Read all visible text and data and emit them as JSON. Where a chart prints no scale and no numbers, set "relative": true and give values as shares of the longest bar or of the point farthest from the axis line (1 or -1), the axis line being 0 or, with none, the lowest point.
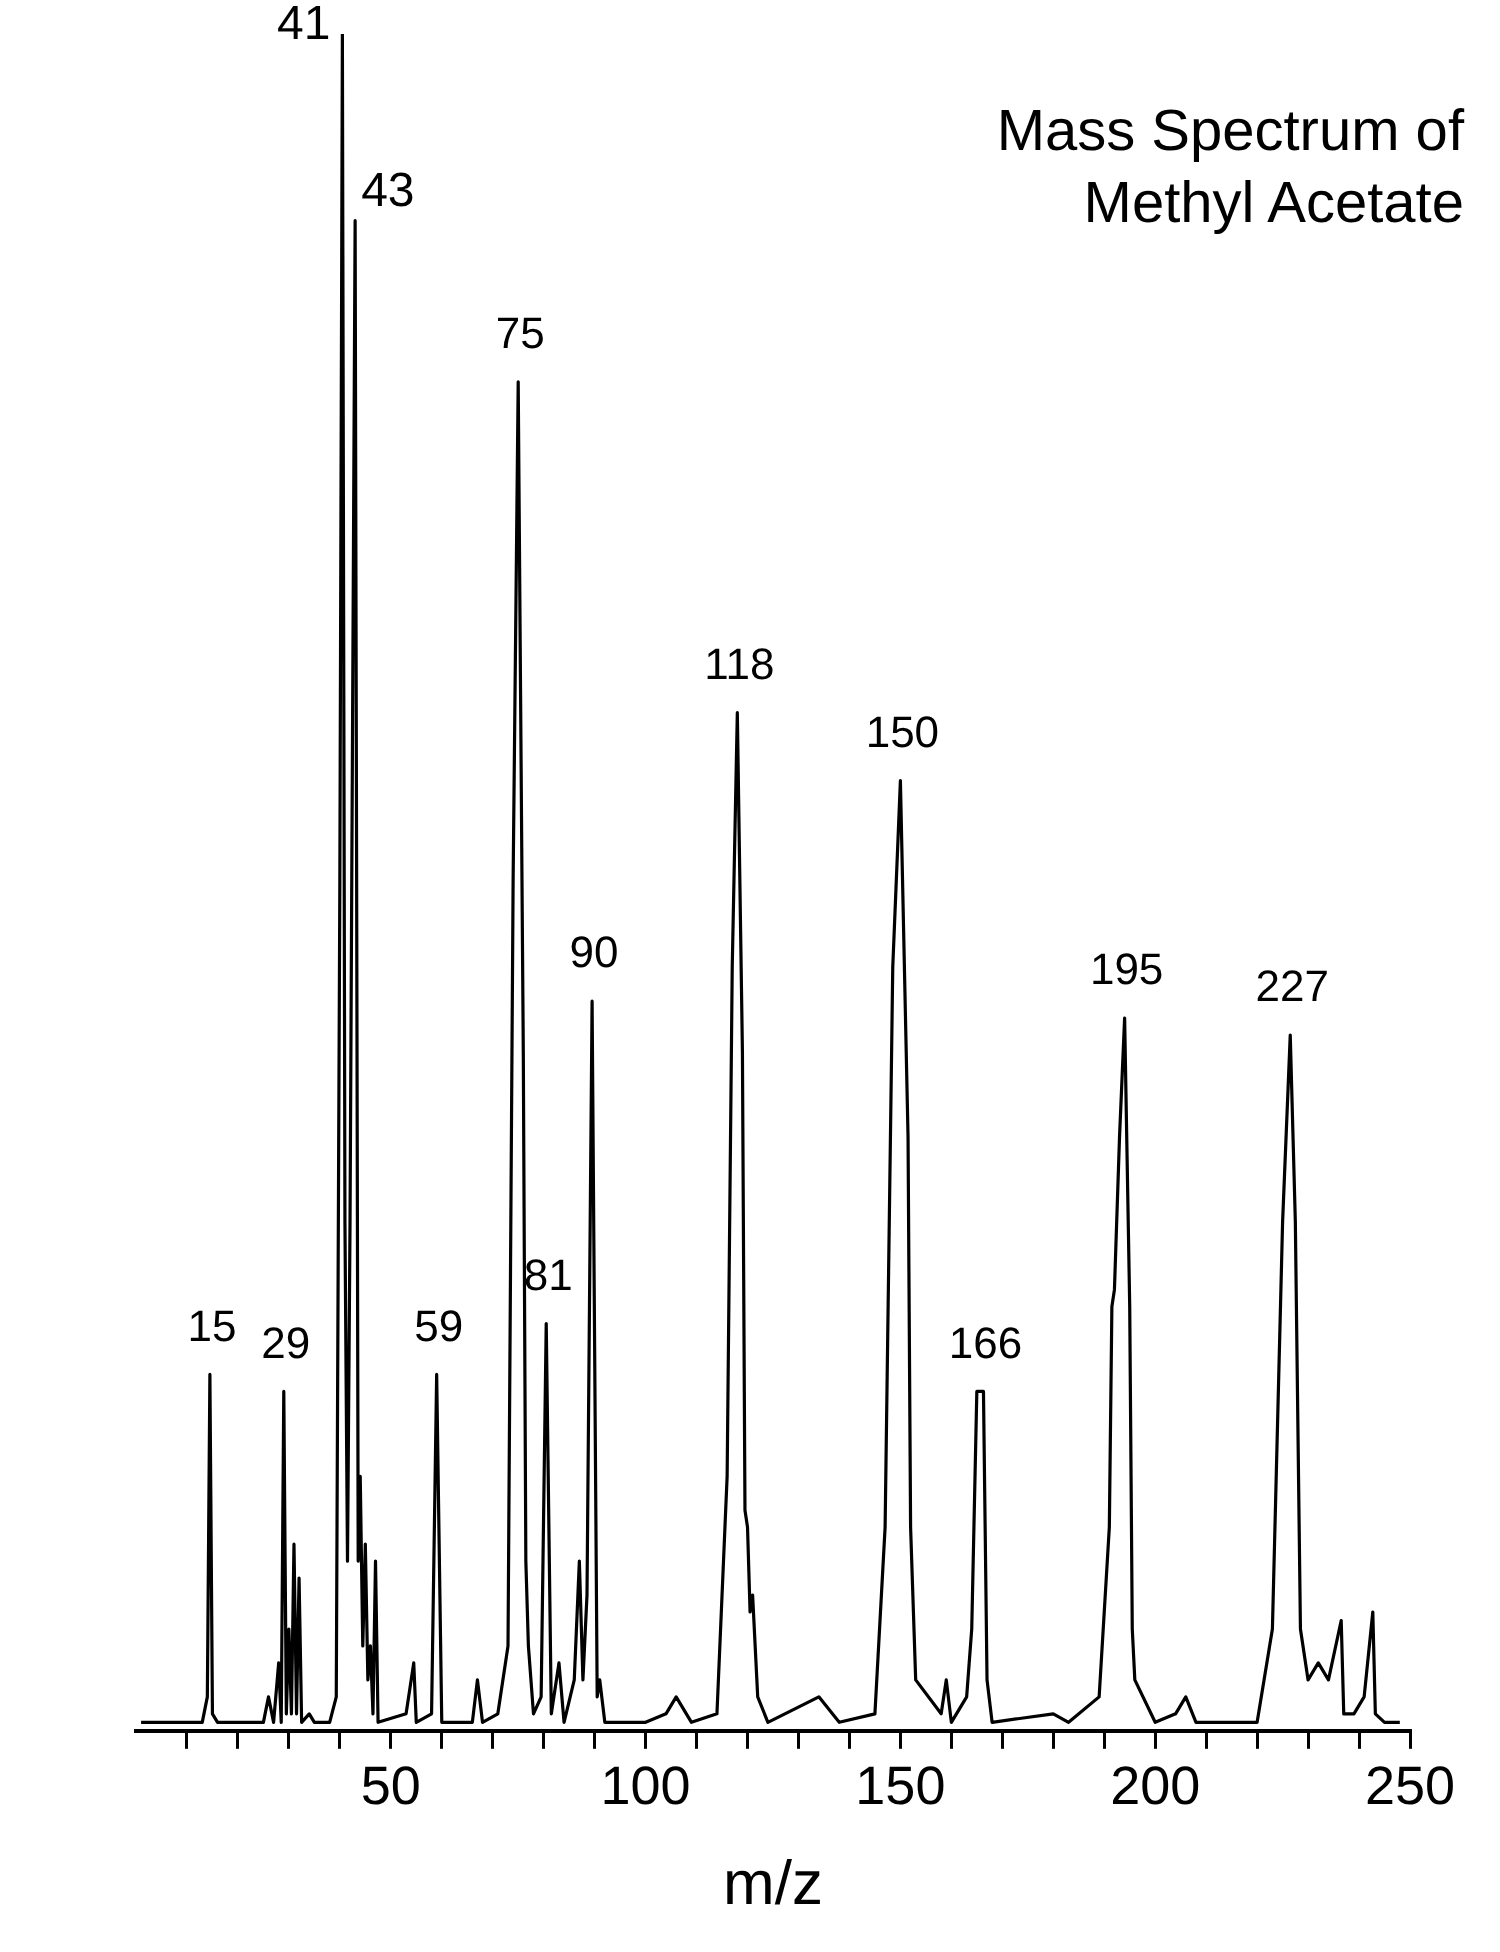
{
  "chart_data": {
    "type": "line",
    "title": "Mass Spectrum of Methyl Acetate",
    "xlabel": "m/z",
    "relative": true,
    "xlim": [
      0,
      250
    ],
    "xticks": [
      {
        "value": 10,
        "label": null
      },
      {
        "value": 20,
        "label": null
      },
      {
        "value": 30,
        "label": null
      },
      {
        "value": 40,
        "label": null
      },
      50,
      {
        "value": 60,
        "label": null
      },
      {
        "value": 70,
        "label": null
      },
      {
        "value": 80,
        "label": null
      },
      {
        "value": 90,
        "label": null
      },
      100,
      {
        "value": 110,
        "label": null
      },
      {
        "value": 120,
        "label": null
      },
      {
        "value": 130,
        "label": null
      },
      {
        "value": 140,
        "label": null
      },
      150,
      {
        "value": 160,
        "label": null
      },
      {
        "value": 170,
        "label": null
      },
      {
        "value": 180,
        "label": null
      },
      {
        "value": 190,
        "label": null
      },
      200,
      {
        "value": 210,
        "label": null
      },
      {
        "value": 220,
        "label": null
      },
      {
        "value": 230,
        "label": null
      },
      {
        "value": 240,
        "label": null
      },
      250
    ],
    "series": [
      {
        "color": "#000000",
        "x": [
          1,
          13,
          14,
          14.5,
          15,
          16,
          25,
          26,
          27,
          28,
          28.5,
          29,
          29.5,
          30,
          30.5,
          31,
          31.5,
          32,
          32.5,
          34,
          35,
          38,
          39.3,
          40,
          40.5,
          41,
          41.5,
          42,
          43,
          43.6,
          44,
          44.5,
          45,
          45.5,
          46,
          46.5,
          47,
          47.5,
          53,
          54.5,
          55,
          58,
          59,
          60,
          66,
          67,
          68,
          71,
          73,
          74,
          75,
          76,
          76.5,
          77,
          78,
          79.5,
          80.5,
          81.5,
          83,
          84,
          86,
          87,
          87.7,
          88.5,
          89.5,
          90.5,
          91,
          92,
          100,
          104,
          106,
          109,
          114,
          116,
          117,
          118,
          119,
          119.5,
          120,
          120.5,
          121,
          122,
          124,
          134,
          138,
          145,
          147,
          148.5,
          150,
          151.5,
          152,
          153,
          158,
          159,
          160,
          163,
          164,
          165,
          166.3,
          167,
          168,
          180,
          183,
          189,
          191,
          191.5,
          192,
          193,
          194,
          195,
          195.5,
          196,
          200,
          204,
          206,
          208,
          212,
          220,
          223,
          225,
          226.5,
          227.5,
          228.5,
          230,
          232,
          234,
          236.5,
          237,
          239,
          241,
          242.7,
          243.2,
          245,
          248
        ],
        "values": [
          0.005,
          0.005,
          0.02,
          0.21,
          0.01,
          0.005,
          0.005,
          0.02,
          0.005,
          0.04,
          0.005,
          0.2,
          0.01,
          0.06,
          0.01,
          0.11,
          0.01,
          0.09,
          0.005,
          0.01,
          0.005,
          0.005,
          0.02,
          0.5,
          1,
          0.3,
          0.1,
          0.3,
          0.89,
          0.1,
          0.15,
          0.05,
          0.11,
          0.03,
          0.05,
          0.01,
          0.1,
          0.005,
          0.01,
          0.04,
          0.005,
          0.01,
          0.21,
          0.005,
          0.005,
          0.03,
          0.005,
          0.01,
          0.05,
          0.5,
          0.795,
          0.4,
          0.1,
          0.05,
          0.01,
          0.02,
          0.24,
          0.01,
          0.04,
          0.005,
          0.03,
          0.1,
          0.03,
          0.08,
          0.43,
          0.02,
          0.03,
          0.005,
          0.005,
          0.01,
          0.02,
          0.005,
          0.01,
          0.15,
          0.45,
          0.6,
          0.4,
          0.13,
          0.12,
          0.07,
          0.08,
          0.02,
          0.005,
          0.02,
          0.005,
          0.01,
          0.12,
          0.45,
          0.56,
          0.35,
          0.12,
          0.03,
          0.01,
          0.03,
          0.005,
          0.02,
          0.06,
          0.2,
          0.2,
          0.03,
          0.005,
          0.01,
          0.005,
          0.02,
          0.12,
          0.25,
          0.26,
          0.35,
          0.42,
          0.25,
          0.06,
          0.03,
          0.005,
          0.01,
          0.02,
          0.005,
          0.005,
          0.005,
          0.06,
          0.3,
          0.41,
          0.3,
          0.06,
          0.03,
          0.04,
          0.03,
          0.065,
          0.01,
          0.01,
          0.02,
          0.07,
          0.01,
          0.005,
          0.005
        ]
      }
    ],
    "annotations": [
      {
        "text": "15",
        "x": 14.5,
        "y": 0.21
      },
      {
        "text": "29",
        "x": 29,
        "y": 0.2
      },
      {
        "text": "41",
        "x": 40.5,
        "y": 1
      },
      {
        "text": "43",
        "x": 43,
        "y": 0.89
      },
      {
        "text": "59",
        "x": 59,
        "y": 0.21
      },
      {
        "text": "75",
        "x": 75,
        "y": 0.795
      },
      {
        "text": "81",
        "x": 80.5,
        "y": 0.24
      },
      {
        "text": "90",
        "x": 89.5,
        "y": 0.43
      },
      {
        "text": "118",
        "x": 118,
        "y": 0.6
      },
      {
        "text": "150",
        "x": 150,
        "y": 0.56
      },
      {
        "text": "166",
        "x": 166.3,
        "y": 0.2
      },
      {
        "text": "195",
        "x": 194,
        "y": 0.42
      },
      {
        "text": "227",
        "x": 226.5,
        "y": 0.41
      }
    ]
  }
}
